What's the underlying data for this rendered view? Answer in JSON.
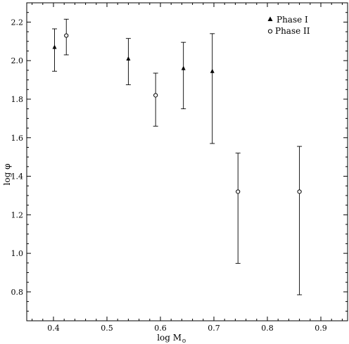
{
  "chart_data": {
    "type": "scatter",
    "xlabel": "log M",
    "xlabel_sub": "⊙",
    "ylabel": "log φ",
    "xlim": [
      0.35,
      0.95
    ],
    "ylim": [
      0.65,
      2.3
    ],
    "xticks": [
      0.4,
      0.5,
      0.6,
      0.7,
      0.8,
      0.9
    ],
    "xtick_labels": [
      "0.4",
      "0.5",
      "0.6",
      "0.7",
      "0.8",
      "0.9"
    ],
    "yticks": [
      0.8,
      1.0,
      1.2,
      1.4,
      1.6,
      1.8,
      2.0,
      2.2
    ],
    "ytick_labels": [
      "0.8",
      "1.0",
      "1.2",
      "1.4",
      "1.6",
      "1.8",
      "2.0",
      "2.2"
    ],
    "grid": false,
    "legend_position": "top-right",
    "series": [
      {
        "name": "Phase I",
        "marker": "filled-triangle",
        "points": [
          {
            "x": 0.402,
            "y": 2.07,
            "ylow": 1.945,
            "yhigh": 2.165
          },
          {
            "x": 0.54,
            "y": 2.01,
            "ylow": 1.875,
            "yhigh": 2.115
          },
          {
            "x": 0.643,
            "y": 1.96,
            "ylow": 1.75,
            "yhigh": 2.095
          },
          {
            "x": 0.697,
            "y": 1.945,
            "ylow": 1.57,
            "yhigh": 2.14
          }
        ]
      },
      {
        "name": "Phase II",
        "marker": "open-circle",
        "points": [
          {
            "x": 0.424,
            "y": 2.13,
            "ylow": 2.03,
            "yhigh": 2.215
          },
          {
            "x": 0.591,
            "y": 1.82,
            "ylow": 1.66,
            "yhigh": 1.935
          },
          {
            "x": 0.745,
            "y": 1.32,
            "ylow": 0.948,
            "yhigh": 1.52
          },
          {
            "x": 0.86,
            "y": 1.32,
            "ylow": 0.785,
            "yhigh": 1.555
          }
        ]
      }
    ]
  }
}
